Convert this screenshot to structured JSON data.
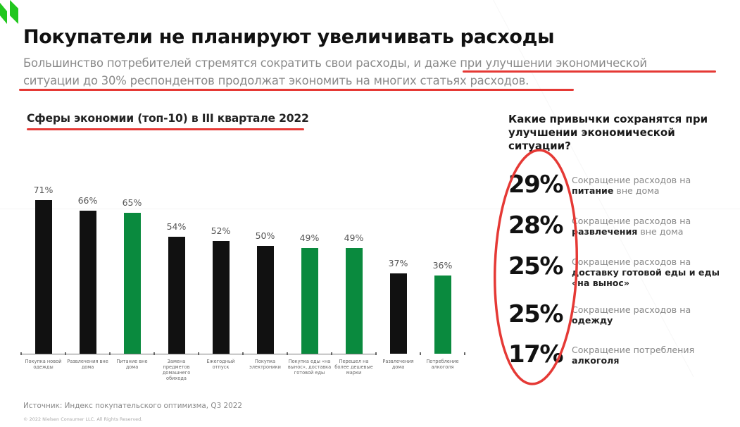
{
  "header": {
    "title": "Покупатели не планируют увеличивать расходы",
    "subtitle_line1": "Большинство потребителей стремятся сократить свои расходы, и даже при улучшении экономической",
    "subtitle_line2": "ситуации до 30% респондентов продолжат экономить на многих статьях расходов."
  },
  "annotations": {
    "underline_color": "#e53935",
    "ellipse_color": "#e53935"
  },
  "colors": {
    "bar_black": "#111111",
    "bar_green": "#0a8a3e",
    "logo_green": "#22c71f"
  },
  "chart_data": {
    "type": "bar",
    "title": "Сферы экономии (топ-10) в III квартале 2022",
    "xlabel": "",
    "ylabel": "",
    "ylim": [
      0,
      80
    ],
    "grid": false,
    "categories": [
      "Покупка новой одежды",
      "Развлечения вне дома",
      "Питание вне дома",
      "Замена предметов домашнего обихода",
      "Ежегодный отпуск",
      "Покупка электроники",
      "Покупка еды «на вынос», доставка готовой еды",
      "Перешел на более дешевые марки",
      "Развлечения дома",
      "Потребление алкоголя"
    ],
    "values": [
      71,
      66,
      65,
      54,
      52,
      50,
      49,
      49,
      37,
      36
    ],
    "value_labels": [
      "71%",
      "66%",
      "65%",
      "54%",
      "52%",
      "50%",
      "49%",
      "49%",
      "37%",
      "36%"
    ],
    "bar_colors": [
      "black",
      "black",
      "green",
      "black",
      "black",
      "black",
      "green",
      "green",
      "black",
      "green"
    ]
  },
  "habits": {
    "title": "Какие привычки сохранятся при улучшении экономической ситуации?",
    "items": [
      {
        "value": "29%",
        "pre": "Сокращение расходов на ",
        "bold": "питание",
        "post": " вне дома"
      },
      {
        "value": "28%",
        "pre": "Сокращение расходов на ",
        "bold": "развлечения",
        "post": " вне дома"
      },
      {
        "value": "25%",
        "pre": "Сокращение расходов на ",
        "bold": "доставку готовой еды и еды «на вынос»",
        "post": ""
      },
      {
        "value": "25%",
        "pre": "Сокращение расходов на ",
        "bold": "одежду",
        "post": ""
      },
      {
        "value": "17%",
        "pre": "Сокращение потребления ",
        "bold": "алкоголя",
        "post": ""
      }
    ]
  },
  "footer": {
    "source": "Источник: Индекс покупательского оптимизма, Q3 2022",
    "copyright": "© 2022 Nielsen Consumer LLC. All Rights Reserved."
  }
}
